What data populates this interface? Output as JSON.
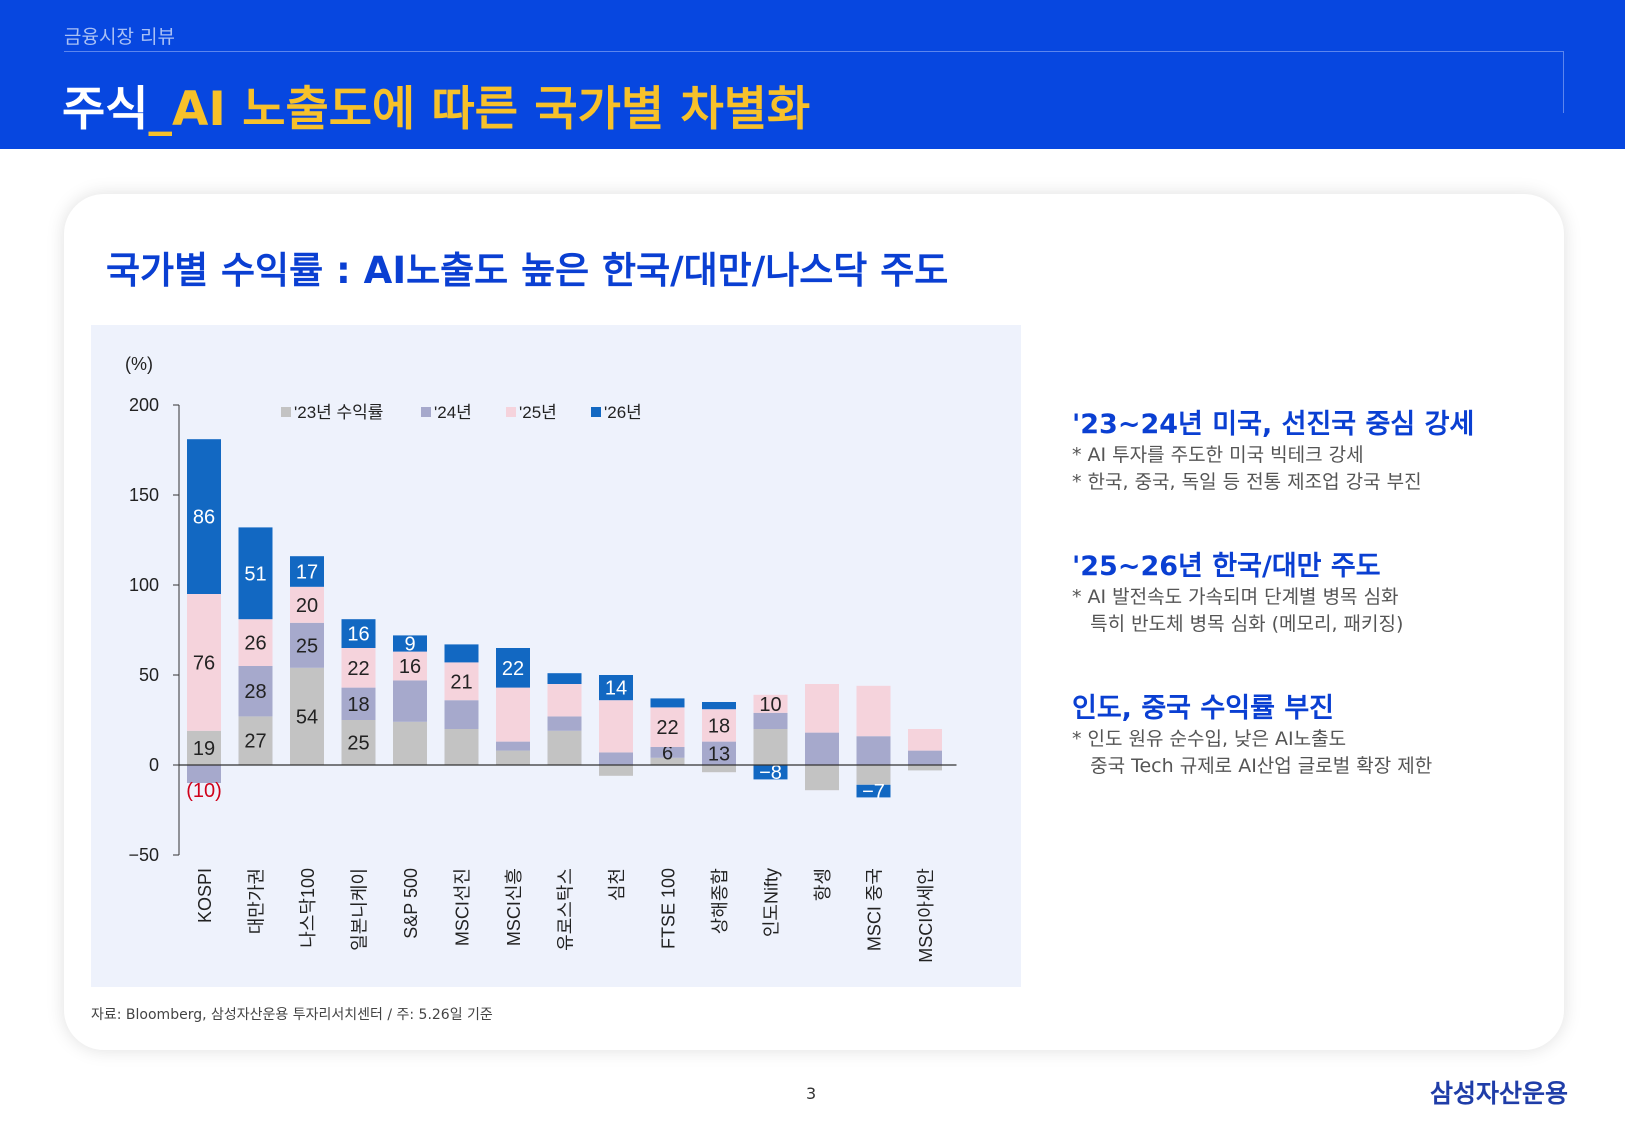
{
  "header": {
    "section": "금융시장 리뷰",
    "title_white": "주식",
    "title_yellow": "_AI 노출도에 따른 국가별 차별화"
  },
  "card": {
    "title": "국가별 수익률 : AI노출도 높은 한국/대만/나스닥 주도",
    "source": "자료: Bloomberg, 삼성자산운용 투자리서치센터 / 주: 5.26일 기준"
  },
  "side": {
    "blocks": [
      {
        "heading": "'23~24년 미국, 선진국 중심 강세",
        "lines": [
          "* AI 투자를 주도한 미국 빅테크 강세",
          "* 한국, 중국, 독일 등 전통 제조업 강국 부진"
        ]
      },
      {
        "heading": "'25~26년 한국/대만 주도",
        "lines": [
          "* AI 발전속도 가속되며 단계별 병목 심화",
          "   특히 반도체 병목 심화 (메모리, 패키징)"
        ]
      },
      {
        "heading": "인도, 중국 수익률 부진",
        "lines": [
          "* 인도 원유 순수입, 낮은 AI노출도",
          "   중국 Tech 규제로 AI산업 글로벌 확장 제한"
        ]
      }
    ]
  },
  "footer": {
    "page": "3",
    "brand": "삼성자산운용"
  },
  "chart_data": {
    "type": "bar",
    "stacked": true,
    "unit_label": "(%)",
    "ylim": [
      -50,
      200
    ],
    "yticks": [
      -50,
      0,
      50,
      100,
      150,
      200
    ],
    "categories": [
      "KOSPI",
      "대만가권",
      "나스닥100",
      "일본니케이",
      "S&P 500",
      "MSCI선진",
      "MSCI신흥",
      "유로스탁스",
      "심천",
      "FTSE 100",
      "상해종합",
      "인도Nifty",
      "항셍",
      "MSCI 중국",
      "MSCI아세안"
    ],
    "legend_position": "top",
    "series": [
      {
        "name": "'23년 수익률",
        "color": "#c3c3c3",
        "values": [
          19,
          27,
          54,
          25,
          24,
          20,
          8,
          19,
          -6,
          4,
          -4,
          20,
          -14,
          -11,
          -3
        ],
        "labels": [
          "19",
          "27",
          "54",
          "25",
          null,
          null,
          null,
          null,
          null,
          null,
          null,
          null,
          null,
          null,
          null
        ]
      },
      {
        "name": "'24년",
        "color": "#a6a9cc",
        "values": [
          -10,
          28,
          25,
          18,
          23,
          16,
          5,
          8,
          7,
          6,
          13,
          9,
          18,
          16,
          8
        ],
        "labels": [
          "(10)",
          "28",
          "25",
          "18",
          null,
          null,
          null,
          null,
          null,
          "6",
          "13",
          null,
          null,
          null,
          null
        ]
      },
      {
        "name": "'25년",
        "color": "#f5d3dc",
        "values": [
          76,
          26,
          20,
          22,
          16,
          21,
          30,
          18,
          29,
          22,
          18,
          10,
          27,
          28,
          12
        ],
        "labels": [
          "76",
          "26",
          "20",
          "22",
          "16",
          "21",
          null,
          null,
          null,
          "22",
          "18",
          "10",
          null,
          null,
          null
        ]
      },
      {
        "name": "'26년",
        "color": "#1268c2",
        "values": [
          86,
          51,
          17,
          16,
          9,
          10,
          22,
          6,
          14,
          5,
          4,
          -8,
          0,
          -7,
          0
        ],
        "labels": [
          "86",
          "51",
          "17",
          "16",
          "9",
          null,
          "22",
          null,
          "14",
          null,
          null,
          "-8",
          null,
          "-7",
          null
        ]
      }
    ]
  }
}
